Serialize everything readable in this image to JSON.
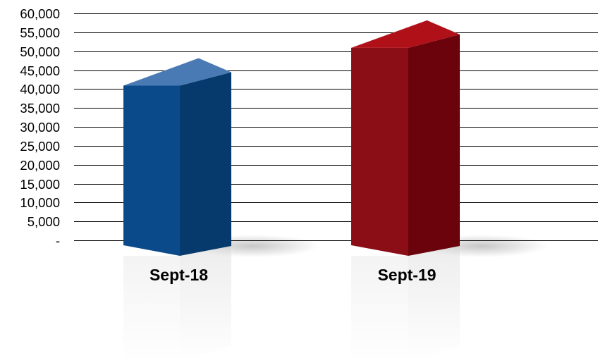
{
  "chart_data": {
    "type": "bar",
    "style": "3d-column",
    "title": "",
    "xlabel": "",
    "ylabel": "",
    "categories": [
      "Sept-18",
      "Sept-19"
    ],
    "values": [
      45000,
      55000
    ],
    "ylim": [
      0,
      60000
    ],
    "y_ticks": [
      0,
      5000,
      10000,
      15000,
      20000,
      25000,
      30000,
      35000,
      40000,
      45000,
      50000,
      55000,
      60000
    ],
    "y_tick_labels": [
      "-",
      "5,000",
      "10,000",
      "15,000",
      "20,000",
      "25,000",
      "30,000",
      "35,000",
      "40,000",
      "45,000",
      "50,000",
      "55,000",
      "60,000"
    ],
    "grid": true,
    "legend": "none",
    "bar_colors": [
      {
        "front": "#0b4a8a",
        "side": "#063a6c",
        "top": "#4a7ab3"
      },
      {
        "front": "#8b0e16",
        "side": "#6a030b",
        "top": "#b01018"
      }
    ]
  }
}
